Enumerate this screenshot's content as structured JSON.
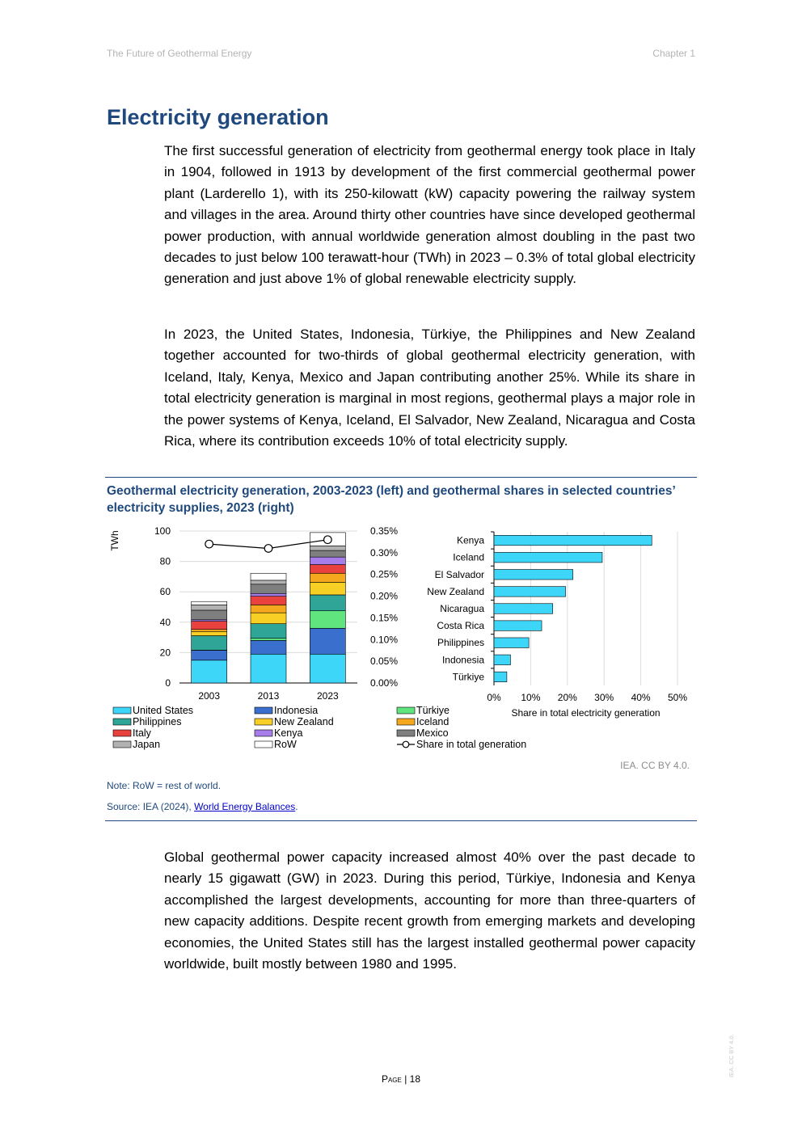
{
  "header": {
    "left": "The Future of Geothermal Energy",
    "right": "Chapter 1"
  },
  "section_title": "Electricity generation",
  "paragraphs": [
    "The first successful generation of electricity from geothermal energy took place in Italy in 1904, followed in 1913 by development of the first commercial geothermal power plant (Larderello 1), with its 250-kilowatt (kW) capacity powering the railway system and villages in the area. Around thirty other countries have since developed geothermal power production, with annual worldwide generation almost doubling in the past two decades to just below 100 terawatt-hour (TWh) in 2023 – 0.3% of total global electricity generation and just above 1% of global renewable electricity supply.",
    "In 2023, the United States, Indonesia, Türkiye, the Philippines and New Zealand together accounted for two-thirds of global geothermal electricity generation, with Iceland, Italy, Kenya, Mexico and Japan contributing another 25%. While its share in total electricity generation is marginal in most regions, geothermal plays a major role in the power systems of Kenya, Iceland, El Salvador, New Zealand, Nicaragua and Costa Rica, where its contribution exceeds 10% of total electricity supply.",
    "Global geothermal power capacity increased almost 40% over the past decade to nearly 15 gigawatt (GW) in 2023. During this period, Türkiye, Indonesia and Kenya accomplished the largest developments, accounting for more than three-quarters of new capacity additions. Despite recent growth from emerging markets and developing economies, the United States still has the largest installed geothermal power capacity worldwide, built mostly between 1980 and 1995."
  ],
  "figure": {
    "title": "Geothermal electricity generation, 2003-2023 (left) and geothermal shares in selected countries’ electricity supplies, 2023 (right)",
    "credit": "IEA. CC BY 4.0.",
    "note": "Note: RoW = rest of world.",
    "source_prefix": "Source: IEA (2024), ",
    "source_link": "World Energy Balances",
    "source_suffix": "."
  },
  "chart_data": [
    {
      "type": "bar",
      "stacked": true,
      "categories": [
        "2003",
        "2013",
        "2023"
      ],
      "ylabel": "TWh",
      "ylim": [
        0,
        100
      ],
      "yticks": [
        "0",
        "20",
        "40",
        "60",
        "80",
        "100"
      ],
      "y2lim": [
        0,
        0.35
      ],
      "y2ticks": [
        "0.00%",
        "0.05%",
        "0.10%",
        "0.15%",
        "0.20%",
        "0.25%",
        "0.30%",
        "0.35%"
      ],
      "series": [
        {
          "name": "United States",
          "color": "#3ed6f8",
          "values": [
            15,
            19,
            19
          ]
        },
        {
          "name": "Indonesia",
          "color": "#3a6fcd",
          "values": [
            6.5,
            9,
            17
          ]
        },
        {
          "name": "Türkiye",
          "color": "#5fe47e",
          "values": [
            0.1,
            1.4,
            11.5
          ]
        },
        {
          "name": "Philippines",
          "color": "#2ea596",
          "values": [
            9.5,
            9.6,
            10.5
          ]
        },
        {
          "name": "New Zealand",
          "color": "#f8cf24",
          "values": [
            2.8,
            7.2,
            8.3
          ]
        },
        {
          "name": "Iceland",
          "color": "#f5a81e",
          "values": [
            1.4,
            5.2,
            5.9
          ]
        },
        {
          "name": "Italy",
          "color": "#e8413e",
          "values": [
            5.3,
            5.7,
            5.7
          ]
        },
        {
          "name": "Kenya",
          "color": "#a77ee9",
          "values": [
            1,
            1.8,
            5
          ]
        },
        {
          "name": "Mexico",
          "color": "#7f7f7f",
          "values": [
            6.3,
            6.1,
            4.3
          ]
        },
        {
          "name": "Japan",
          "color": "#b2b2b2",
          "values": [
            3.5,
            2.6,
            3
          ]
        },
        {
          "name": "RoW",
          "color": "#ffffff",
          "values": [
            2.2,
            4.6,
            8.8
          ]
        }
      ],
      "line_series": {
        "name": "Share in total generation",
        "axis": "right",
        "values": [
          0.32,
          0.31,
          0.33
        ]
      }
    },
    {
      "type": "bar",
      "orientation": "horizontal",
      "categories": [
        "Kenya",
        "Iceland",
        "El Salvador",
        "New Zealand",
        "Nicaragua",
        "Costa Rica",
        "Philippines",
        "Indonesia",
        "Türkiye"
      ],
      "values": [
        43,
        29.5,
        21.5,
        19.5,
        16,
        13,
        9.5,
        4.5,
        3.5
      ],
      "unit": "%",
      "color": "#3ed6f8",
      "xlabel": "Share in total electricity generation",
      "xlim": [
        0,
        50
      ],
      "xticks": [
        "0%",
        "10%",
        "20%",
        "30%",
        "40%",
        "50%"
      ]
    }
  ],
  "footer": {
    "page_label": "Page",
    "page_number": "18"
  },
  "side_license": "IEA. CC BY 4.0."
}
